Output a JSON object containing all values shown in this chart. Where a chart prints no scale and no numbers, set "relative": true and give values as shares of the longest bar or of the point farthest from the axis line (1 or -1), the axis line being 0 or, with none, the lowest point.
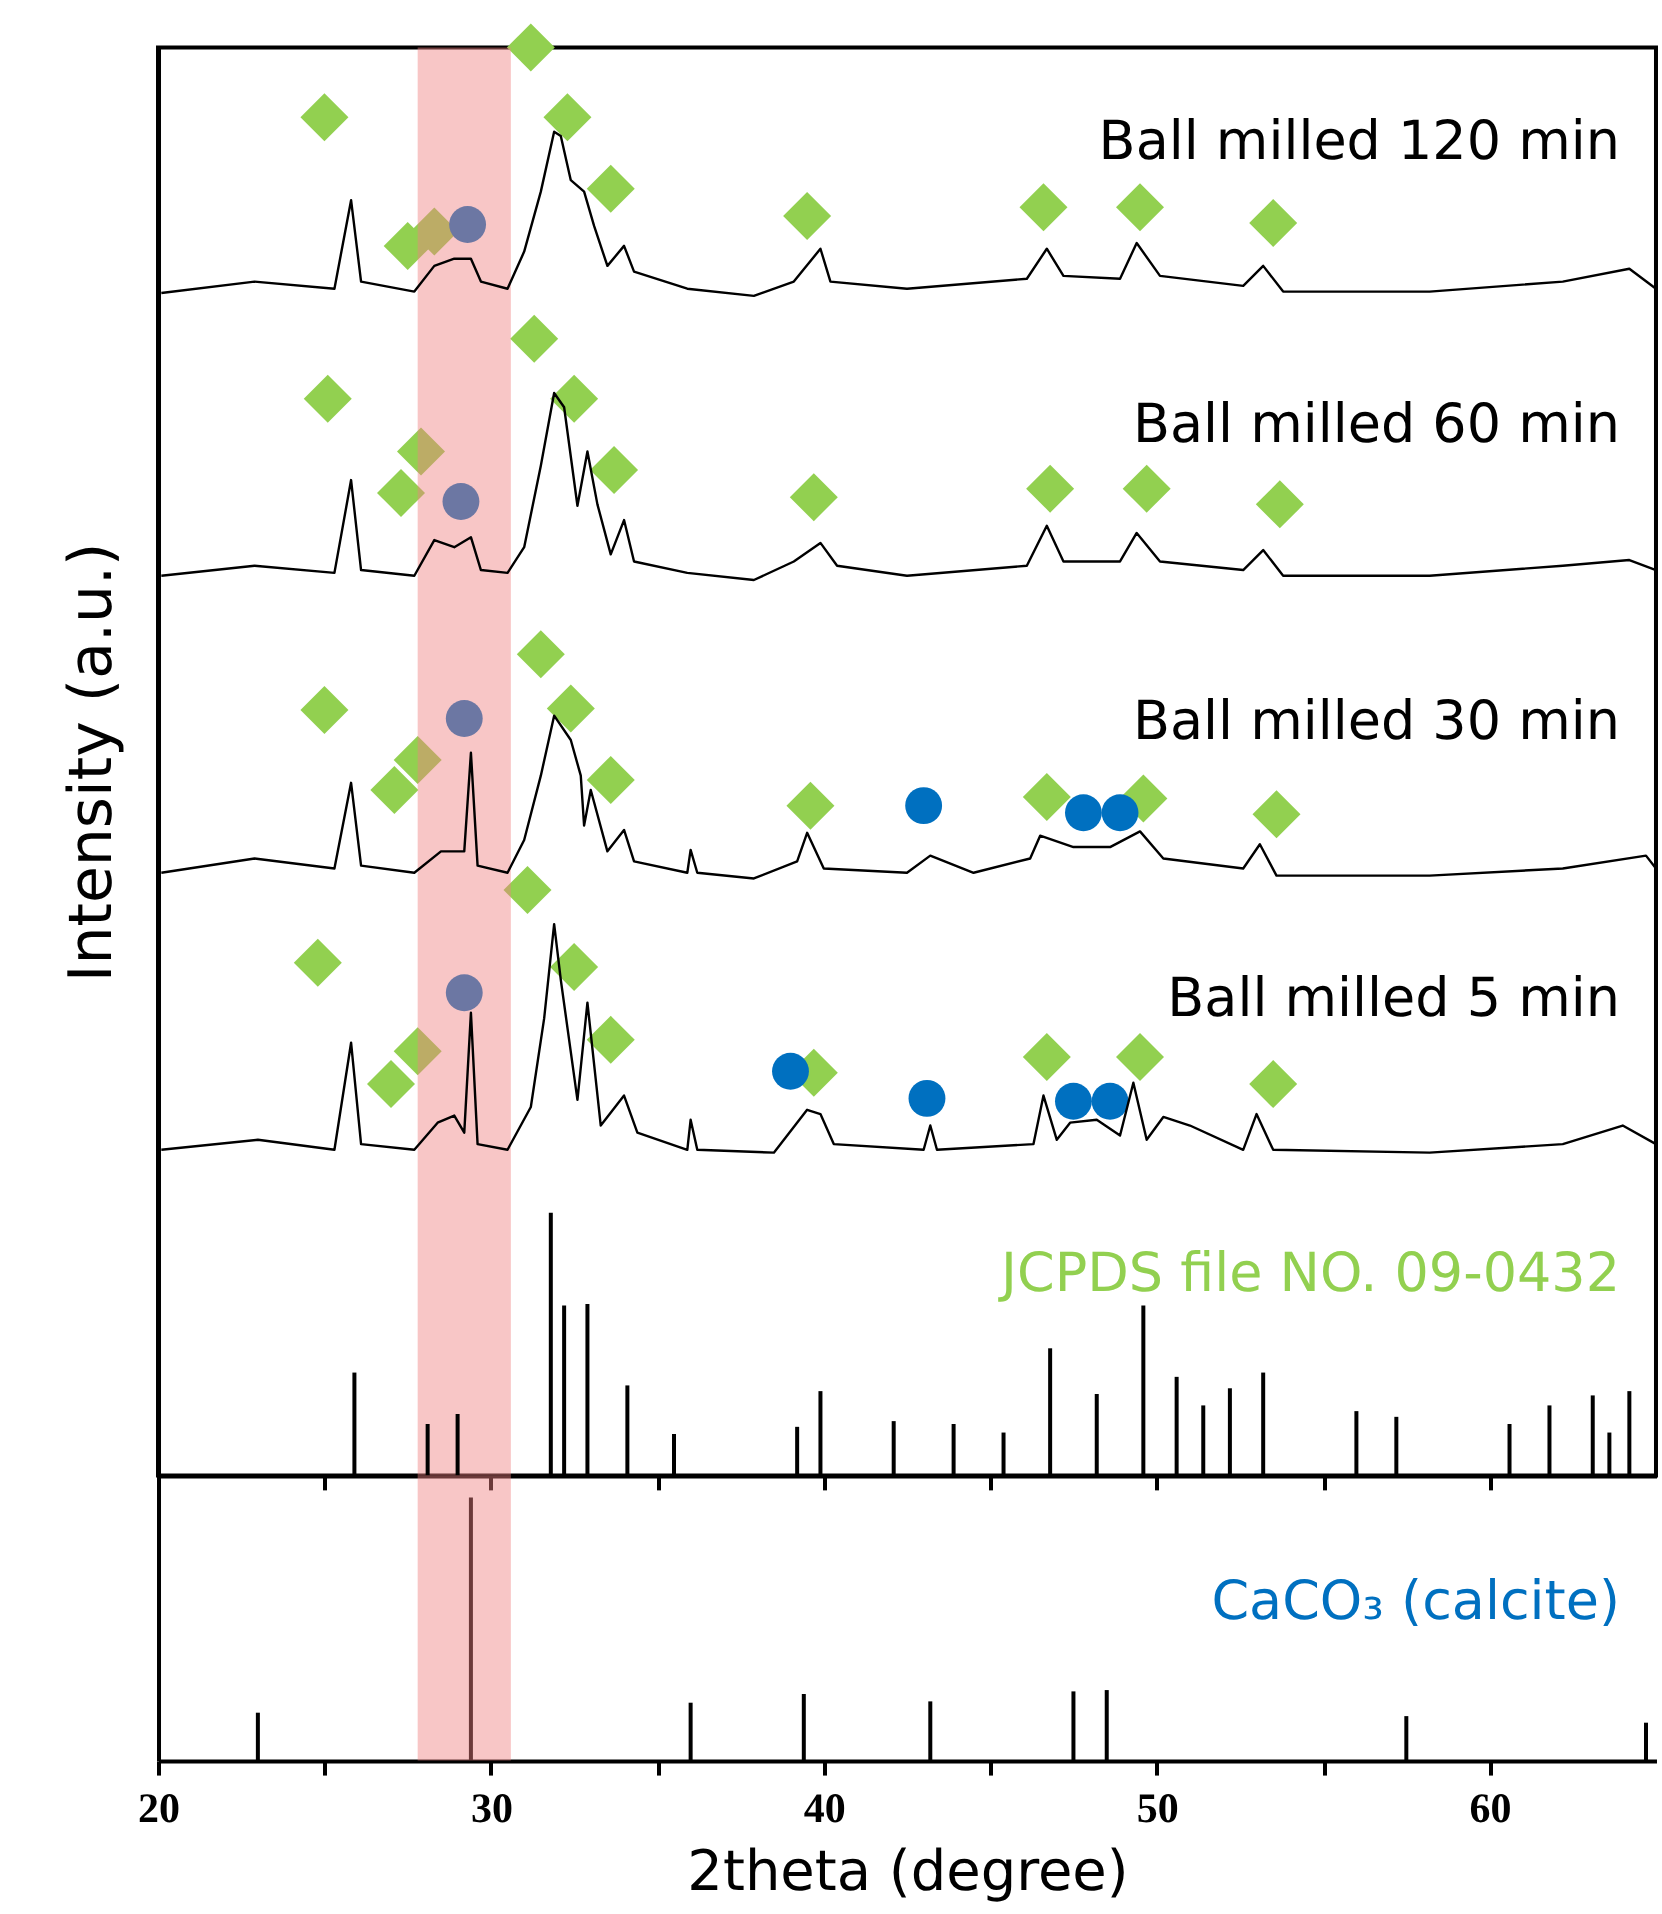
{
  "chart_data": [
    {
      "type": "line",
      "relative": true,
      "ylabel": "Intensity (a.u.)",
      "xlim": [
        20,
        65
      ],
      "xticks": [
        20,
        {
          "value": 25,
          "label": null
        },
        30,
        {
          "value": 35,
          "label": null
        },
        40,
        {
          "value": 45,
          "label": null
        },
        50,
        {
          "value": 55,
          "label": null
        },
        60
      ],
      "tick_labels": false,
      "bands": [
        {
          "axis": "x",
          "from": 27.8,
          "to": 30.6,
          "color": "#f08080"
        }
      ],
      "series": [
        {
          "name": "Ball milled 120 min",
          "color": "#000000",
          "x": [
            20.1,
            22.9,
            25.3,
            25.8,
            26.1,
            27.7,
            28.3,
            28.9,
            29.4,
            29.7,
            30.5,
            31.0,
            31.5,
            31.9,
            32.1,
            32.4,
            32.8,
            33.1,
            33.5,
            34.0,
            34.3,
            35.9,
            37.9,
            39.1,
            39.9,
            40.2,
            42.5,
            46.1,
            46.7,
            47.2,
            48.9,
            49.4,
            50.1,
            52.6,
            53.2,
            53.8,
            58.2,
            62.2,
            64.2,
            65.0
          ],
          "values": [
            0.828,
            0.836,
            0.831,
            0.893,
            0.836,
            0.829,
            0.847,
            0.852,
            0.852,
            0.836,
            0.831,
            0.857,
            0.899,
            0.941,
            0.938,
            0.907,
            0.899,
            0.875,
            0.847,
            0.861,
            0.843,
            0.831,
            0.826,
            0.836,
            0.859,
            0.836,
            0.831,
            0.838,
            0.859,
            0.84,
            0.838,
            0.863,
            0.84,
            0.833,
            0.847,
            0.829,
            0.829,
            0.836,
            0.845,
            0.831
          ]
        },
        {
          "name": "Ball milled 60 min",
          "color": "#000000",
          "x": [
            20.1,
            22.9,
            25.3,
            25.8,
            26.1,
            27.7,
            28.3,
            28.9,
            29.4,
            29.7,
            30.5,
            31.0,
            31.5,
            31.9,
            32.2,
            32.6,
            32.9,
            33.2,
            33.6,
            34.0,
            34.3,
            35.9,
            37.9,
            39.1,
            39.9,
            40.4,
            42.5,
            46.1,
            46.7,
            47.2,
            48.9,
            49.4,
            50.1,
            52.6,
            53.2,
            53.8,
            58.2,
            62.2,
            64.2,
            65.0
          ],
          "values": [
            0.63,
            0.637,
            0.632,
            0.697,
            0.634,
            0.63,
            0.655,
            0.65,
            0.657,
            0.634,
            0.632,
            0.65,
            0.707,
            0.758,
            0.748,
            0.679,
            0.717,
            0.68,
            0.645,
            0.669,
            0.64,
            0.632,
            0.627,
            0.64,
            0.653,
            0.637,
            0.63,
            0.637,
            0.665,
            0.64,
            0.64,
            0.66,
            0.64,
            0.634,
            0.648,
            0.63,
            0.63,
            0.637,
            0.641,
            0.634
          ]
        },
        {
          "name": "Ball milled 30 min",
          "color": "#000000",
          "x": [
            20.1,
            22.9,
            25.3,
            25.8,
            26.1,
            27.7,
            28.5,
            29.2,
            29.4,
            29.6,
            30.5,
            31.0,
            31.5,
            31.9,
            32.4,
            32.7,
            32.8,
            33.0,
            33.5,
            34.0,
            34.3,
            35.9,
            36.0,
            36.2,
            37.9,
            39.2,
            39.5,
            40.0,
            42.5,
            43.2,
            44.5,
            46.2,
            46.5,
            47.5,
            48.6,
            49.5,
            50.2,
            52.6,
            53.1,
            53.6,
            58.2,
            62.2,
            64.7,
            65.0
          ],
          "values": [
            0.422,
            0.432,
            0.425,
            0.485,
            0.427,
            0.422,
            0.437,
            0.437,
            0.506,
            0.427,
            0.422,
            0.445,
            0.49,
            0.532,
            0.515,
            0.49,
            0.455,
            0.48,
            0.437,
            0.452,
            0.43,
            0.422,
            0.438,
            0.422,
            0.418,
            0.43,
            0.45,
            0.425,
            0.422,
            0.434,
            0.422,
            0.432,
            0.448,
            0.44,
            0.44,
            0.451,
            0.432,
            0.425,
            0.442,
            0.42,
            0.42,
            0.425,
            0.434,
            0.425
          ]
        },
        {
          "name": "Ball milled 5 min",
          "color": "#000000",
          "x": [
            20.1,
            23.0,
            25.3,
            25.8,
            26.1,
            27.7,
            28.4,
            28.9,
            29.2,
            29.4,
            29.6,
            30.5,
            31.2,
            31.6,
            31.9,
            32.1,
            32.6,
            32.9,
            33.3,
            34.0,
            34.4,
            35.9,
            36.0,
            36.2,
            38.5,
            39.5,
            39.9,
            40.3,
            43.0,
            43.2,
            43.4,
            46.3,
            46.6,
            47.0,
            47.4,
            48.2,
            48.9,
            49.3,
            49.7,
            50.2,
            51.0,
            52.6,
            53.0,
            53.5,
            58.2,
            62.2,
            64.0,
            65.0
          ],
          "values": [
            0.228,
            0.235,
            0.228,
            0.303,
            0.232,
            0.228,
            0.247,
            0.252,
            0.24,
            0.324,
            0.232,
            0.228,
            0.258,
            0.32,
            0.386,
            0.347,
            0.263,
            0.331,
            0.245,
            0.266,
            0.24,
            0.228,
            0.249,
            0.228,
            0.226,
            0.256,
            0.253,
            0.232,
            0.228,
            0.245,
            0.228,
            0.232,
            0.266,
            0.235,
            0.247,
            0.249,
            0.238,
            0.275,
            0.235,
            0.251,
            0.245,
            0.228,
            0.253,
            0.228,
            0.226,
            0.232,
            0.245,
            0.232
          ]
        },
        {
          "name": "JCPDS file NO. 09-0432",
          "type": "bar",
          "color": "#000000",
          "x": [
            25.9,
            28.1,
            29.0,
            31.8,
            32.2,
            32.9,
            34.1,
            35.5,
            39.2,
            39.9,
            42.1,
            43.9,
            45.4,
            46.8,
            48.2,
            49.6,
            50.6,
            51.4,
            52.2,
            53.2,
            56.0,
            57.2,
            60.6,
            61.8,
            63.1,
            63.6,
            64.2
          ],
          "values": [
            0.072,
            0.036,
            0.043,
            0.184,
            0.119,
            0.12,
            0.063,
            0.029,
            0.034,
            0.059,
            0.038,
            0.036,
            0.03,
            0.089,
            0.057,
            0.119,
            0.069,
            0.049,
            0.061,
            0.072,
            0.045,
            0.041,
            0.036,
            0.049,
            0.056,
            0.03,
            0.059
          ]
        },
        {
          "type": "scatter",
          "marker": "diamond",
          "color": "#92d050",
          "x": [
            31.2,
            25.0,
            32.3,
            33.6,
            27.5,
            28.3,
            39.5,
            46.6,
            49.5,
            53.5,
            31.3,
            25.1,
            32.5,
            33.7,
            27.3,
            27.9,
            39.7,
            46.8,
            49.7,
            53.7,
            31.5,
            25.0,
            32.4,
            33.6,
            27.1,
            27.8,
            39.6,
            46.7,
            49.6,
            53.6,
            31.1,
            24.8,
            32.5,
            33.6,
            27.0,
            27.8,
            39.7,
            46.7,
            49.5,
            53.5
          ],
          "values": [
            1.0,
            0.951,
            0.951,
            0.901,
            0.861,
            0.871,
            0.882,
            0.888,
            0.888,
            0.877,
            0.796,
            0.754,
            0.754,
            0.704,
            0.688,
            0.717,
            0.685,
            0.691,
            0.691,
            0.68,
            0.575,
            0.536,
            0.537,
            0.487,
            0.48,
            0.501,
            0.469,
            0.475,
            0.474,
            0.463,
            0.41,
            0.359,
            0.356,
            0.305,
            0.274,
            0.297,
            0.282,
            0.293,
            0.293,
            0.274
          ]
        },
        {
          "type": "scatter",
          "marker": "circle",
          "color": "#0070c0",
          "x": [
            29.3,
            29.1,
            29.2,
            43.0,
            47.8,
            48.9,
            29.2,
            39.0,
            43.1,
            47.5,
            48.6
          ],
          "values": [
            0.876,
            0.682,
            0.53,
            0.469,
            0.464,
            0.464,
            0.338,
            0.283,
            0.264,
            0.262,
            0.262
          ]
        }
      ]
    },
    {
      "type": "bar",
      "relative": true,
      "xlabel": "2theta (degree)",
      "xlim": [
        20,
        65
      ],
      "xticks": [
        20,
        {
          "value": 25,
          "label": null
        },
        30,
        {
          "value": 35,
          "label": null
        },
        40,
        {
          "value": 45,
          "label": null
        },
        50,
        {
          "value": 55,
          "label": null
        },
        60
      ],
      "tick_labels": "x",
      "bands": [
        {
          "axis": "x",
          "from": 27.8,
          "to": 30.6,
          "color": "#f08080"
        }
      ],
      "series": [
        {
          "name": "CaCO₃ (calcite)",
          "color": "#000000",
          "x": [
            23.0,
            29.4,
            36.0,
            39.4,
            43.2,
            47.5,
            48.5,
            57.5,
            64.7
          ],
          "values": [
            0.182,
            1.0,
            0.22,
            0.253,
            0.225,
            0.263,
            0.268,
            0.169,
            0.144
          ]
        }
      ]
    }
  ]
}
